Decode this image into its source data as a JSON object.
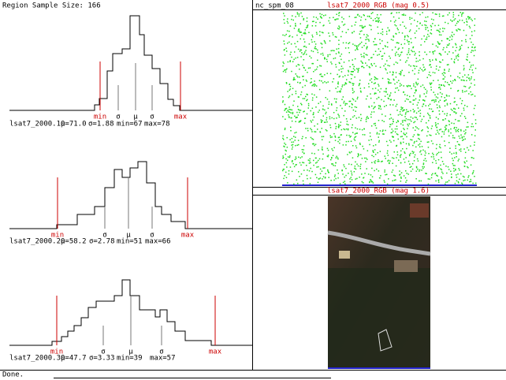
{
  "header": {
    "sample_size": "Region Sample Size: 166"
  },
  "histograms": [
    {
      "name": "lsat7_2000.10",
      "mean": "μ=71.0",
      "sd": "σ=1.88",
      "min": "min=67",
      "max": "max=78",
      "markers": [
        "min",
        "σ",
        "μ",
        "σ",
        "max"
      ]
    },
    {
      "name": "lsat7_2000.20",
      "mean": "μ=58.2",
      "sd": "σ=2.78",
      "min": "min=51",
      "max": "max=66",
      "markers": [
        "min",
        "σ",
        "μ",
        "σ",
        "max"
      ]
    },
    {
      "name": "lsat7_2000.30",
      "mean": "μ=47.7",
      "sd": "σ=3.33",
      "min": "min=39",
      "max": "max=57",
      "markers": [
        "min",
        "σ",
        "μ",
        "σ",
        "max"
      ]
    }
  ],
  "right": {
    "top_label": "nc_spm_08",
    "top_title": "lsat7_2000_RGB (mag 0.5)",
    "bottom_title": "lsat7_2000_RGB (mag 1.6)"
  },
  "status": "Done."
}
